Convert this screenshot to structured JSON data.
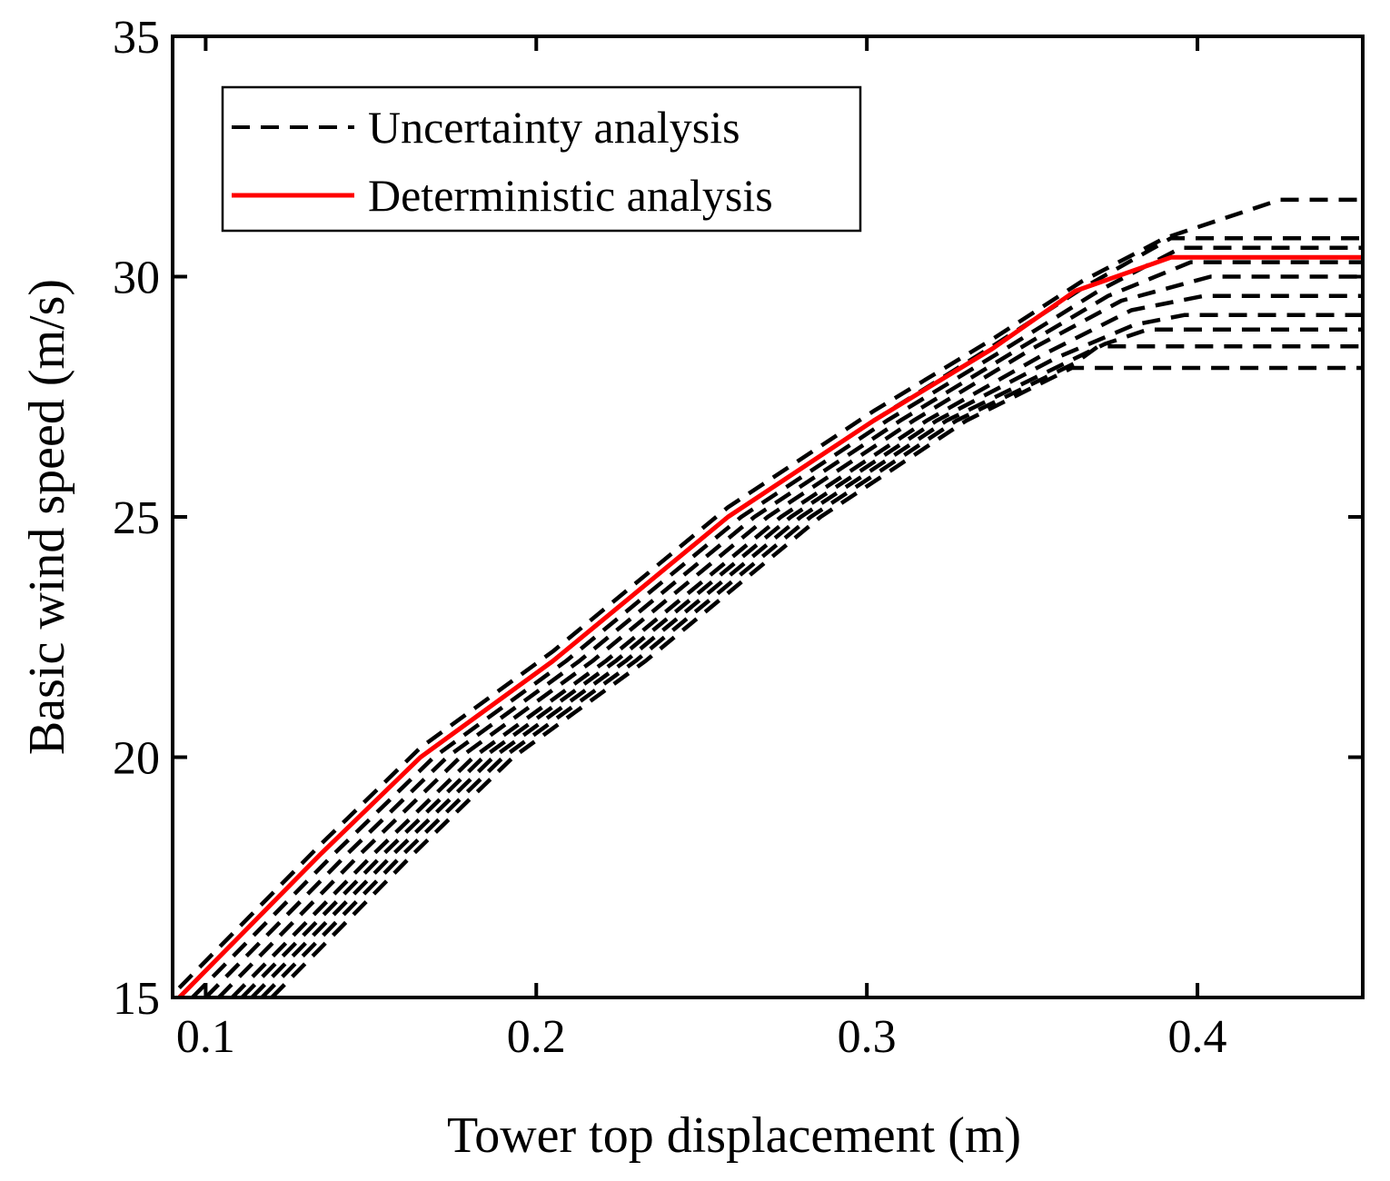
{
  "chart_data": {
    "type": "line",
    "title": "",
    "xlabel": "Tower top displacement (m)",
    "ylabel": "Basic wind speed (m/s)",
    "xlim": [
      0.09,
      0.45
    ],
    "ylim": [
      15,
      35
    ],
    "xticks": [
      0.1,
      0.2,
      0.3,
      0.4
    ],
    "xtick_labels": [
      "0.1",
      "0.2",
      "0.3",
      "0.4"
    ],
    "yticks": [
      15,
      20,
      25,
      30,
      35
    ],
    "ytick_labels": [
      "15",
      "20",
      "25",
      "30",
      "35"
    ],
    "grid": false,
    "legend_position": "top-left",
    "colors": {
      "uncertainty": "#000000",
      "deterministic": "#ff0000"
    },
    "series": [
      {
        "name": "Deterministic analysis",
        "style": "solid",
        "color": "#ff0000",
        "x": [
          0.092,
          0.135,
          0.165,
          0.205,
          0.258,
          0.302,
          0.338,
          0.363,
          0.392,
          0.45
        ],
        "y": [
          15.0,
          18.0,
          20.0,
          22.0,
          25.0,
          27.0,
          28.5,
          29.7,
          30.4,
          30.4
        ]
      },
      {
        "name": "Uncertainty analysis",
        "legend_label": "Uncertainty analysis",
        "style": "dashed",
        "color": "#000000",
        "x": [
          0.092,
          0.135,
          0.165,
          0.205,
          0.258,
          0.302,
          0.338,
          0.365,
          0.39,
          0.425,
          0.45
        ],
        "y": [
          15.2,
          18.2,
          20.2,
          22.2,
          25.2,
          27.2,
          28.7,
          29.9,
          30.8,
          31.6,
          31.6
        ]
      },
      {
        "name": "Uncertainty analysis",
        "style": "dashed",
        "color": "#000000",
        "x": [
          0.092,
          0.135,
          0.165,
          0.205,
          0.258,
          0.302,
          0.338,
          0.365,
          0.392,
          0.45
        ],
        "y": [
          15.0,
          18.0,
          20.0,
          22.0,
          25.0,
          27.0,
          28.55,
          29.75,
          30.8,
          30.8
        ]
      },
      {
        "name": "Uncertainty analysis",
        "style": "dashed",
        "color": "#000000",
        "x": [
          0.096,
          0.139,
          0.169,
          0.209,
          0.262,
          0.306,
          0.342,
          0.37,
          0.395,
          0.45
        ],
        "y": [
          15.0,
          18.0,
          20.0,
          22.0,
          25.0,
          27.0,
          28.5,
          29.7,
          30.6,
          30.6
        ]
      },
      {
        "name": "Uncertainty analysis",
        "style": "dashed",
        "color": "#000000",
        "x": [
          0.1,
          0.143,
          0.173,
          0.213,
          0.266,
          0.31,
          0.346,
          0.373,
          0.398,
          0.45
        ],
        "y": [
          15.0,
          18.0,
          20.0,
          22.0,
          25.0,
          27.0,
          28.5,
          29.6,
          30.3,
          30.3
        ]
      },
      {
        "name": "Uncertainty analysis",
        "style": "dashed",
        "color": "#000000",
        "x": [
          0.104,
          0.147,
          0.177,
          0.217,
          0.27,
          0.314,
          0.35,
          0.377,
          0.404,
          0.45
        ],
        "y": [
          15.0,
          18.0,
          20.0,
          22.0,
          25.0,
          27.0,
          28.5,
          29.5,
          30.0,
          30.0
        ]
      },
      {
        "name": "Uncertainty analysis",
        "style": "dashed",
        "color": "#000000",
        "x": [
          0.108,
          0.151,
          0.181,
          0.221,
          0.274,
          0.318,
          0.354,
          0.38,
          0.402,
          0.45
        ],
        "y": [
          15.0,
          18.0,
          20.0,
          22.0,
          25.0,
          27.0,
          28.4,
          29.3,
          29.6,
          29.6
        ]
      },
      {
        "name": "Uncertainty analysis",
        "style": "dashed",
        "color": "#000000",
        "x": [
          0.111,
          0.154,
          0.184,
          0.224,
          0.277,
          0.321,
          0.357,
          0.381,
          0.396,
          0.45
        ],
        "y": [
          15.0,
          18.0,
          20.0,
          22.0,
          25.0,
          27.0,
          28.3,
          29.0,
          29.2,
          29.2
        ]
      },
      {
        "name": "Uncertainty analysis",
        "style": "dashed",
        "color": "#000000",
        "x": [
          0.114,
          0.157,
          0.187,
          0.227,
          0.28,
          0.324,
          0.36,
          0.372,
          0.385,
          0.45
        ],
        "y": [
          15.0,
          18.0,
          20.0,
          22.0,
          25.0,
          27.0,
          28.2,
          28.6,
          28.9,
          28.9
        ]
      },
      {
        "name": "Uncertainty analysis",
        "style": "dashed",
        "color": "#000000",
        "x": [
          0.117,
          0.16,
          0.19,
          0.23,
          0.283,
          0.327,
          0.363,
          0.37,
          0.45
        ],
        "y": [
          15.0,
          18.0,
          20.0,
          22.0,
          25.0,
          27.0,
          28.2,
          28.55,
          28.55
        ]
      },
      {
        "name": "Uncertainty analysis",
        "style": "dashed",
        "color": "#000000",
        "x": [
          0.12,
          0.163,
          0.193,
          0.233,
          0.286,
          0.33,
          0.362,
          0.368,
          0.45
        ],
        "y": [
          15.0,
          18.0,
          20.0,
          22.0,
          25.0,
          27.0,
          28.1,
          28.1,
          28.1
        ]
      }
    ]
  }
}
